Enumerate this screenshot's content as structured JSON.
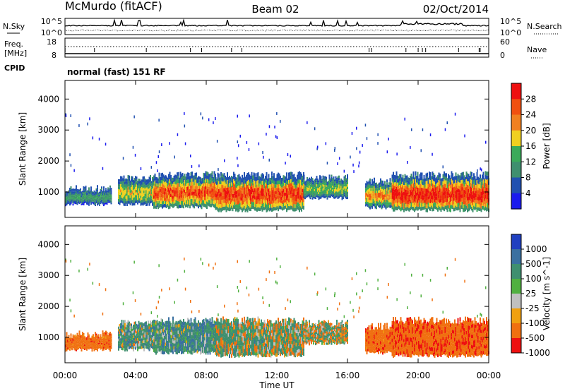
{
  "header": {
    "radar": "McMurdo (fitACF)",
    "beam": "Beam 02",
    "date": "02/Oct/2014"
  },
  "noise_panel": {
    "left_label": "N.Sky",
    "right_label": "N.Search",
    "left_ticks": [
      "10^5",
      "10^0"
    ],
    "right_ticks": [
      "10^5",
      "10^0"
    ]
  },
  "freq_panel": {
    "left_label_line1": "Freq.",
    "left_label_line2": "[MHz]",
    "right_label": "Nave",
    "left_ticks": [
      "18",
      "8"
    ],
    "right_ticks": [
      "60",
      "0"
    ]
  },
  "cpid": {
    "label": "CPID",
    "value": "normal (fast) 151 RF"
  },
  "chart_data": [
    {
      "type": "heatmap",
      "title": "Power",
      "xlabel": "Time UT",
      "ylabel": "Slant Range [km]",
      "colorbar_label": "Power [dB]",
      "x_ticks": [
        "00:00",
        "04:00",
        "08:00",
        "12:00",
        "16:00",
        "20:00",
        "00:00"
      ],
      "y_ticks": [
        "1000",
        "2000",
        "3000",
        "4000"
      ],
      "xlim": [
        0,
        24
      ],
      "ylim": [
        180,
        4600
      ],
      "colorbar_ticks": [
        "4",
        "8",
        "12",
        "16",
        "20",
        "24",
        "28"
      ],
      "colorbar_range": [
        0,
        32
      ],
      "colors": [
        "#1a1aee",
        "#2050b0",
        "#3f8f6f",
        "#3aaa5a",
        "#f0d020",
        "#f08020",
        "#f05010",
        "#ee1010"
      ],
      "echo_bands": [
        {
          "t0": 0.0,
          "t1": 2.6,
          "r0": 600,
          "r1": 1050,
          "core": 12
        },
        {
          "t0": 3.0,
          "t1": 5.0,
          "r0": 600,
          "r1": 1400,
          "core": 18
        },
        {
          "t0": 5.0,
          "t1": 8.5,
          "r0": 500,
          "r1": 1500,
          "core": 26
        },
        {
          "t0": 8.5,
          "t1": 13.5,
          "r0": 400,
          "r1": 1500,
          "core": 28
        },
        {
          "t0": 13.5,
          "t1": 16.0,
          "r0": 800,
          "r1": 1400,
          "core": 16
        },
        {
          "t0": 17.0,
          "t1": 18.5,
          "r0": 500,
          "r1": 1300,
          "core": 22
        },
        {
          "t0": 18.5,
          "t1": 24.0,
          "r0": 400,
          "r1": 1500,
          "core": 30
        }
      ]
    },
    {
      "type": "heatmap",
      "title": "Velocity",
      "xlabel": "Time UT",
      "ylabel": "Slant Range [km]",
      "colorbar_label": "Velocity [m s^-1]",
      "x_ticks": [
        "00:00",
        "04:00",
        "08:00",
        "12:00",
        "16:00",
        "20:00",
        "00:00"
      ],
      "y_ticks": [
        "1000",
        "2000",
        "3000",
        "4000"
      ],
      "xlim": [
        0,
        24
      ],
      "ylim": [
        180,
        4600
      ],
      "colorbar_ticks": [
        "1000",
        "500",
        "100",
        "25",
        "-25",
        "-100",
        "-500",
        "-1000"
      ],
      "colors": [
        "#2040c0",
        "#3a70a0",
        "#3f8f6f",
        "#50b040",
        "#c0c0c0",
        "#f0a010",
        "#f07010",
        "#ee1010"
      ],
      "echo_bands": [
        {
          "t0": 0.0,
          "t1": 2.6,
          "r0": 600,
          "r1": 1050,
          "v": -300
        },
        {
          "t0": 3.0,
          "t1": 5.0,
          "r0": 600,
          "r1": 1400,
          "v": 150
        },
        {
          "t0": 5.0,
          "t1": 8.5,
          "r0": 500,
          "r1": 1500,
          "v": 200
        },
        {
          "t0": 8.5,
          "t1": 13.5,
          "r0": 400,
          "r1": 1500,
          "v": 60
        },
        {
          "t0": 13.5,
          "t1": 16.0,
          "r0": 800,
          "r1": 1400,
          "v": 10
        },
        {
          "t0": 17.0,
          "t1": 18.5,
          "r0": 500,
          "r1": 1300,
          "v": -300
        },
        {
          "t0": 18.5,
          "t1": 24.0,
          "r0": 400,
          "r1": 1500,
          "v": -400
        }
      ]
    }
  ]
}
